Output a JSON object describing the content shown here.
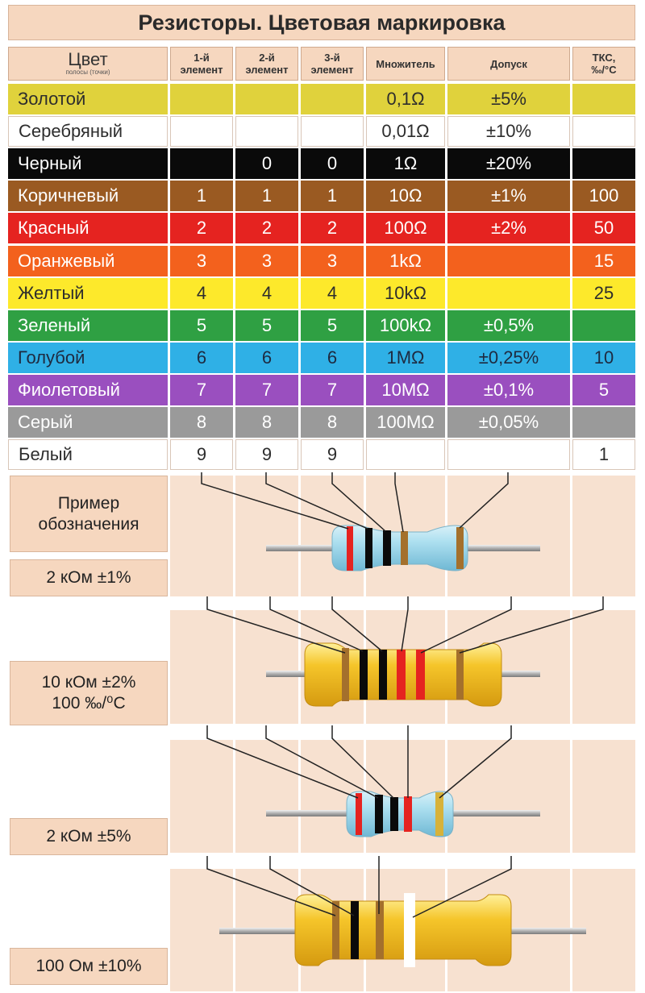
{
  "title": "Резисторы. Цветовая маркировка",
  "headers": {
    "color": "Цвет",
    "color_sub": "полосы (точки)",
    "first": [
      "1-й",
      "элемент"
    ],
    "second": [
      "2-й",
      "элемент"
    ],
    "third": [
      "3-й",
      "элемент"
    ],
    "multiplier": "Множитель",
    "tolerance": "Допуск",
    "tcr": [
      "ТКС,",
      "‰/°С"
    ]
  },
  "rows": [
    {
      "name": "Золотой",
      "c1": "",
      "c2": "",
      "c3": "",
      "mult": "0,1Ω",
      "tol": "±5%",
      "tcr": "",
      "bg": "#e0d23c",
      "fg": "#2d2d2d"
    },
    {
      "name": "Серебряный",
      "c1": "",
      "c2": "",
      "c3": "",
      "mult": "0,01Ω",
      "tol": "±10%",
      "tcr": "",
      "bg": "#ffffff",
      "fg": "#2d2d2d"
    },
    {
      "name": "Черный",
      "c1": "",
      "c2": "0",
      "c3": "0",
      "mult": "1Ω",
      "tol": "±20%",
      "tcr": "",
      "bg": "#0a0a0a",
      "fg": "#ffffff"
    },
    {
      "name": "Коричневый",
      "c1": "1",
      "c2": "1",
      "c3": "1",
      "mult": "10Ω",
      "tol": "±1%",
      "tcr": "100",
      "bg": "#9a5a22",
      "fg": "#ffffff"
    },
    {
      "name": "Красный",
      "c1": "2",
      "c2": "2",
      "c3": "2",
      "mult": "100Ω",
      "tol": "±2%",
      "tcr": "50",
      "bg": "#e52320",
      "fg": "#ffffff"
    },
    {
      "name": "Оранжевый",
      "c1": "3",
      "c2": "3",
      "c3": "3",
      "mult": "1kΩ",
      "tol": "",
      "tcr": "15",
      "bg": "#f3611d",
      "fg": "#ffffff"
    },
    {
      "name": "Желтый",
      "c1": "4",
      "c2": "4",
      "c3": "4",
      "mult": "10kΩ",
      "tol": "",
      "tcr": "25",
      "bg": "#fde92b",
      "fg": "#2d2d2d"
    },
    {
      "name": "Зеленый",
      "c1": "5",
      "c2": "5",
      "c3": "5",
      "mult": "100kΩ",
      "tol": "±0,5%",
      "tcr": "",
      "bg": "#2fa043",
      "fg": "#ffffff"
    },
    {
      "name": "Голубой",
      "c1": "6",
      "c2": "6",
      "c3": "6",
      "mult": "1MΩ",
      "tol": "±0,25%",
      "tcr": "10",
      "bg": "#2fb0e6",
      "fg": "#1e2a40"
    },
    {
      "name": "Фиолетовый",
      "c1": "7",
      "c2": "7",
      "c3": "7",
      "mult": "10MΩ",
      "tol": "±0,1%",
      "tcr": "5",
      "bg": "#9a4fbf",
      "fg": "#ffffff"
    },
    {
      "name": "Серый",
      "c1": "8",
      "c2": "8",
      "c3": "8",
      "mult": "100MΩ",
      "tol": "±0,05%",
      "tcr": "",
      "bg": "#9a9a9a",
      "fg": "#ffffff"
    },
    {
      "name": "Белый",
      "c1": "9",
      "c2": "9",
      "c3": "9",
      "mult": "",
      "tol": "",
      "tcr": "1",
      "bg": "#ffffff",
      "fg": "#2d2d2d"
    }
  ],
  "examples": {
    "heading": [
      "Пример",
      "обозначения"
    ],
    "ex1": "2 кОм ±1%",
    "ex2": [
      "10 кОм ±2%",
      "100 ‰/⁰С"
    ],
    "ex3": "2 кОм ±5%",
    "ex4": "100 Ом ±10%"
  },
  "colors": {
    "header_bg": "#f6d7bf",
    "column_bg": "#f7e1d0",
    "body_blue": "#aee0f0",
    "body_yellow": "#f5c52a",
    "band_red": "#e52320",
    "band_black": "#0a0a0a",
    "band_brown": "#a4702c",
    "band_gold": "#d7b23a"
  }
}
